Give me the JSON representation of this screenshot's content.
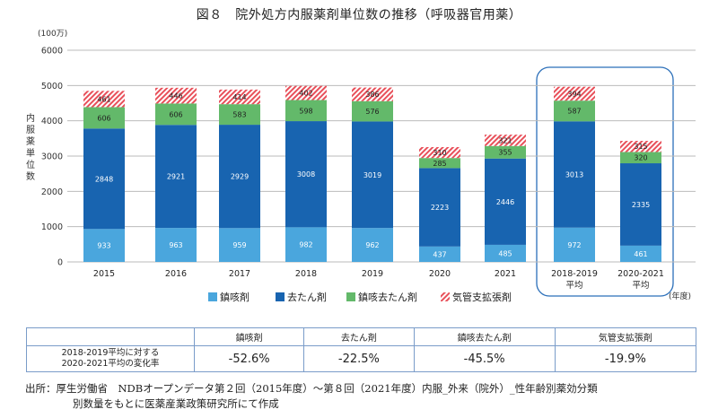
{
  "chart_data": {
    "type": "bar",
    "stacked": true,
    "title": "図８　院外処方内服薬剤単位数の推移（呼吸器官用薬）",
    "yunit": "(100万)",
    "ylabel": "内服薬単位数",
    "xunit": "(年度)",
    "ylim": [
      0,
      6000
    ],
    "yticks": [
      0,
      1000,
      2000,
      3000,
      4000,
      5000,
      6000
    ],
    "grid": true,
    "legend_position": "bottom",
    "categories": [
      [
        "2015"
      ],
      [
        "2016"
      ],
      [
        "2017"
      ],
      [
        "2018"
      ],
      [
        "2019"
      ],
      [
        "2020"
      ],
      [
        "2021"
      ],
      [
        "2018-2019",
        "平均"
      ],
      [
        "2020-2021",
        "平均"
      ]
    ],
    "series": [
      {
        "name": "鎮咳剤",
        "color": "#4aa6dd",
        "values": [
          933,
          963,
          959,
          982,
          962,
          437,
          485,
          972,
          461
        ]
      },
      {
        "name": "去たん剤",
        "color": "#1864b0",
        "values": [
          2848,
          2921,
          2929,
          3008,
          3019,
          2223,
          2446,
          3013,
          2335
        ]
      },
      {
        "name": "鎮咳去たん剤",
        "color": "#63b96a",
        "values": [
          606,
          606,
          583,
          598,
          576,
          285,
          355,
          587,
          320
        ]
      },
      {
        "name": "気管支拡張剤",
        "color": "#e8505a",
        "pattern": "hatched",
        "values": [
          461,
          446,
          414,
          402,
          386,
          310,
          321,
          394,
          315
        ]
      }
    ],
    "highlight_categories": [
      "2018-2019 平均",
      "2020-2021 平均"
    ]
  },
  "table": {
    "headers": [
      "",
      "鎮咳剤",
      "去たん剤",
      "鎮咳去たん剤",
      "気管支拡張剤"
    ],
    "row_label_1": "2018-2019平均に対する",
    "row_label_2": "2020-2021平均の変化率",
    "values": [
      "-52.6%",
      "-22.5%",
      "-45.5%",
      "-19.9%"
    ]
  },
  "source": {
    "line1": "出所：厚生労働省　NDBオープンデータ第２回（2015年度）～第８回（2021年度）内服_外来（院外）_性年齢別薬効分類",
    "line2": "別数量をもとに医薬産業政策研究所にて作成"
  }
}
